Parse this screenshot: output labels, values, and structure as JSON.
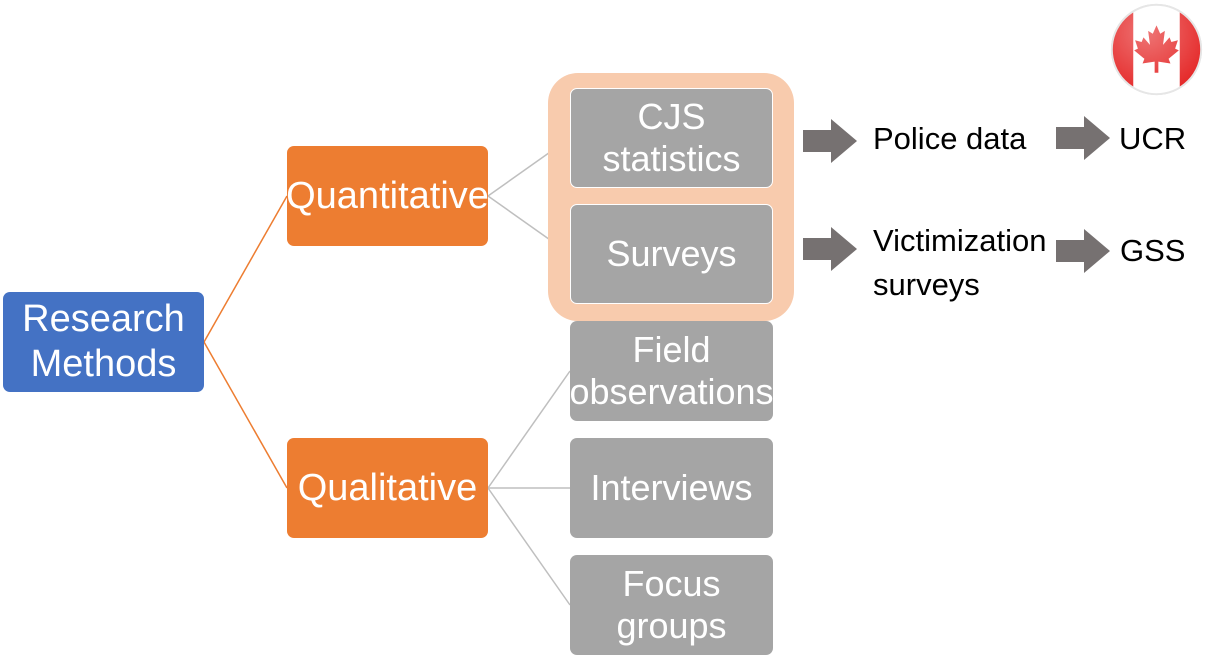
{
  "root": {
    "label": "Research\nMethods"
  },
  "branches": {
    "quantitative": "Quantitative",
    "qualitative": "Qualitative"
  },
  "quantitative_items": {
    "cjs_statistics": "CJS\nstatistics",
    "surveys": "Surveys"
  },
  "qualitative_items": {
    "field_observations": "Field\nobservations",
    "interviews": "Interviews",
    "focus_groups": "Focus\ngroups"
  },
  "sources": {
    "police_data": "Police data",
    "victimization_surveys": "Victimization\nsurveys"
  },
  "programs": {
    "ucr": "UCR",
    "gss": "GSS"
  },
  "flag": {
    "icon": "canada-flag-icon"
  },
  "colors": {
    "root": "#4472c4",
    "branch": "#ed7d31",
    "item": "#a5a5a5",
    "highlight": "#f8cbad",
    "arrow": "#767171"
  }
}
